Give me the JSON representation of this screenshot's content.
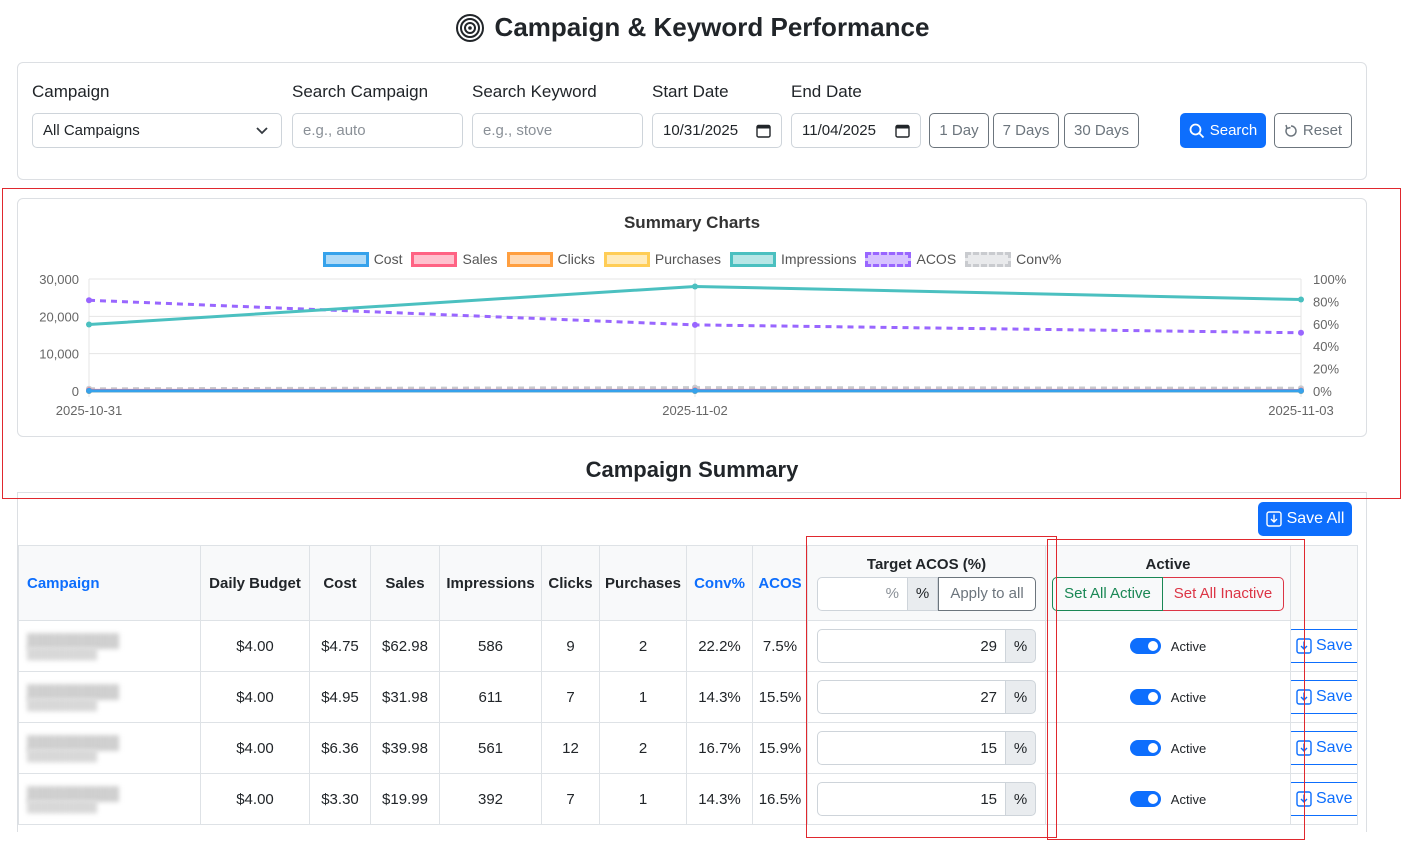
{
  "page": {
    "title": "Campaign & Keyword Performance"
  },
  "filters": {
    "campaign_label": "Campaign",
    "campaign_value": "All Campaigns",
    "search_campaign_label": "Search Campaign",
    "search_campaign_placeholder": "e.g., auto",
    "search_keyword_label": "Search Keyword",
    "search_keyword_placeholder": "e.g., stove",
    "start_date_label": "Start Date",
    "start_date_value": "10/31/2025",
    "end_date_label": "End Date",
    "end_date_value": "11/04/2025",
    "quick_ranges": [
      "1 Day",
      "7 Days",
      "30 Days"
    ],
    "search_label": "Search",
    "reset_label": "Reset"
  },
  "chart_data": {
    "type": "line",
    "title": "Summary Charts",
    "x": [
      "2025-10-31",
      "2025-11-02",
      "2025-11-03"
    ],
    "series": [
      {
        "name": "Cost",
        "axis": "left",
        "values": [
          20,
          22,
          18
        ],
        "color": "#36a2eb"
      },
      {
        "name": "Sales",
        "axis": "left",
        "values": [
          155,
          165,
          150
        ],
        "color": "#ff6384"
      },
      {
        "name": "Clicks",
        "axis": "left",
        "values": [
          35,
          40,
          32
        ],
        "color": "#ff9f40"
      },
      {
        "name": "Purchases",
        "axis": "left",
        "values": [
          6,
          7,
          6
        ],
        "color": "#ffcd56"
      },
      {
        "name": "Impressions",
        "axis": "left",
        "values": [
          17800,
          28000,
          24500
        ],
        "color": "#4bc0c0"
      },
      {
        "name": "ACOS",
        "axis": "right",
        "values": [
          81,
          59,
          52
        ],
        "color": "#9966ff",
        "dashed": true
      },
      {
        "name": "Conv%",
        "axis": "right",
        "values": [
          2,
          3,
          2.5
        ],
        "color": "#c9cbcf",
        "dashed": true
      }
    ],
    "left_ticks": [
      "0",
      "10,000",
      "20,000",
      "30,000"
    ],
    "right_ticks": [
      "0%",
      "20%",
      "40%",
      "60%",
      "80%",
      "100%"
    ],
    "ylim_left": [
      0,
      30000
    ],
    "ylim_right": [
      0,
      100
    ],
    "legend_position": "top",
    "grid": true
  },
  "summary": {
    "title": "Campaign Summary",
    "save_all_label": "Save All",
    "headers": {
      "campaign": "Campaign",
      "daily_budget": "Daily Budget",
      "cost": "Cost",
      "sales": "Sales",
      "impressions": "Impressions",
      "clicks": "Clicks",
      "purchases": "Purchases",
      "conv": "Conv%",
      "acos": "ACOS",
      "target_acos": "Target ACOS (%)",
      "active": "Active"
    },
    "bulk_acos_placeholder": "%",
    "bulk_acos_suffix": "%",
    "apply_all_label": "Apply to all",
    "set_all_active_label": "Set All Active",
    "set_all_inactive_label": "Set All Inactive",
    "rows": [
      {
        "daily_budget": "$4.00",
        "cost": "$4.75",
        "sales": "$62.98",
        "impressions": "586",
        "clicks": "9",
        "purchases": "2",
        "conv": "22.2%",
        "acos": "7.5%",
        "target_acos": "29",
        "pct": "%",
        "status": "Active",
        "save": "Save"
      },
      {
        "daily_budget": "$4.00",
        "cost": "$4.95",
        "sales": "$31.98",
        "impressions": "611",
        "clicks": "7",
        "purchases": "1",
        "conv": "14.3%",
        "acos": "15.5%",
        "target_acos": "27",
        "pct": "%",
        "status": "Active",
        "save": "Save"
      },
      {
        "daily_budget": "$4.00",
        "cost": "$6.36",
        "sales": "$39.98",
        "impressions": "561",
        "clicks": "12",
        "purchases": "2",
        "conv": "16.7%",
        "acos": "15.9%",
        "target_acos": "15",
        "pct": "%",
        "status": "Active",
        "save": "Save"
      },
      {
        "daily_budget": "$4.00",
        "cost": "$3.30",
        "sales": "$19.99",
        "impressions": "392",
        "clicks": "7",
        "purchases": "1",
        "conv": "14.3%",
        "acos": "16.5%",
        "target_acos": "15",
        "pct": "%",
        "status": "Active",
        "save": "Save"
      }
    ]
  },
  "colors": {
    "primary": "#0d6efd",
    "success": "#198754",
    "danger": "#dc3545",
    "annotation": "#e0282e"
  },
  "icons": {
    "title": "target-icon",
    "search": "search-icon",
    "reset": "reset-icon",
    "save": "download-icon"
  }
}
